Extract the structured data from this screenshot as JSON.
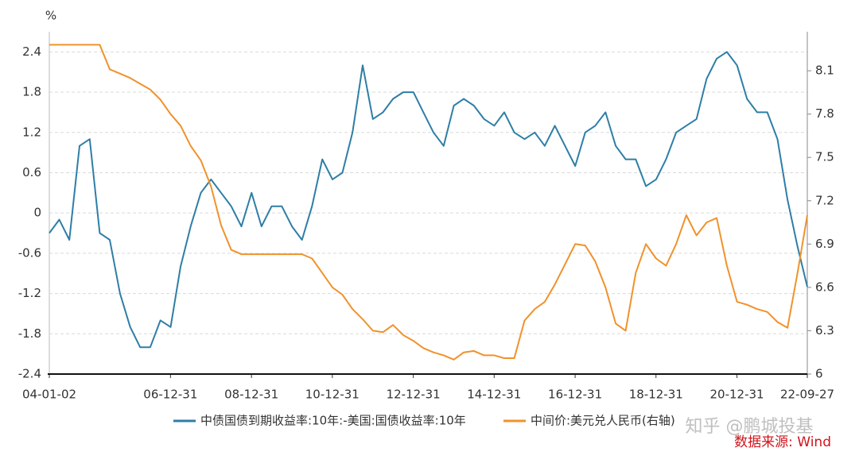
{
  "chart_data": {
    "type": "line",
    "y_unit_label": "%",
    "x": [
      "2004-01-02",
      "2004-04-01",
      "2004-07-01",
      "2004-10-01",
      "2005-01-01",
      "2005-04-01",
      "2005-07-01",
      "2005-10-01",
      "2006-01-01",
      "2006-04-01",
      "2006-07-01",
      "2006-10-01",
      "2007-01-01",
      "2007-04-01",
      "2007-07-01",
      "2007-10-01",
      "2008-01-01",
      "2008-04-01",
      "2008-07-01",
      "2008-10-01",
      "2009-01-01",
      "2009-04-01",
      "2009-07-01",
      "2009-10-01",
      "2010-01-01",
      "2010-04-01",
      "2010-07-01",
      "2010-10-01",
      "2011-01-01",
      "2011-04-01",
      "2011-07-01",
      "2011-10-01",
      "2012-01-01",
      "2012-04-01",
      "2012-07-01",
      "2012-10-01",
      "2013-01-01",
      "2013-04-01",
      "2013-07-01",
      "2013-10-01",
      "2014-01-01",
      "2014-04-01",
      "2014-07-01",
      "2014-10-01",
      "2015-01-01",
      "2015-04-01",
      "2015-07-01",
      "2015-10-01",
      "2016-01-01",
      "2016-04-01",
      "2016-07-01",
      "2016-10-01",
      "2017-01-01",
      "2017-04-01",
      "2017-07-01",
      "2017-10-01",
      "2018-01-01",
      "2018-04-01",
      "2018-07-01",
      "2018-10-01",
      "2019-01-01",
      "2019-04-01",
      "2019-07-01",
      "2019-10-01",
      "2020-01-01",
      "2020-04-01",
      "2020-07-01",
      "2020-10-01",
      "2021-01-01",
      "2021-04-01",
      "2021-07-01",
      "2021-10-01",
      "2022-01-01",
      "2022-04-01",
      "2022-07-01",
      "2022-09-27"
    ],
    "series": [
      {
        "name": "中债国债到期收益率:10年:-美国:国债收益率:10年",
        "color": "#2e7ea6",
        "values": [
          -0.3,
          -0.1,
          -0.4,
          1.0,
          1.1,
          -0.3,
          -0.4,
          -1.2,
          -1.7,
          -2.0,
          -2.0,
          -1.6,
          -1.7,
          -0.8,
          -0.2,
          0.3,
          0.5,
          0.3,
          0.1,
          -0.2,
          0.3,
          -0.2,
          0.1,
          0.1,
          -0.2,
          -0.4,
          0.1,
          0.8,
          0.5,
          0.6,
          1.2,
          2.2,
          1.4,
          1.5,
          1.7,
          1.8,
          1.8,
          1.5,
          1.2,
          1.0,
          1.6,
          1.7,
          1.6,
          1.4,
          1.3,
          1.5,
          1.2,
          1.1,
          1.2,
          1.0,
          1.3,
          1.0,
          0.7,
          1.2,
          1.3,
          1.5,
          1.0,
          0.8,
          0.8,
          0.4,
          0.5,
          0.8,
          1.2,
          1.3,
          1.4,
          2.0,
          2.3,
          2.4,
          2.2,
          1.7,
          1.5,
          1.5,
          1.1,
          0.2,
          -0.5,
          -1.1
        ]
      },
      {
        "name": "中间价:美元兑人民币(右轴)",
        "color": "#f0922b",
        "axis": "y2",
        "values": [
          8.28,
          8.28,
          8.28,
          8.28,
          8.28,
          8.28,
          8.11,
          8.08,
          8.05,
          8.01,
          7.97,
          7.9,
          7.8,
          7.72,
          7.58,
          7.48,
          7.3,
          7.03,
          6.86,
          6.83,
          6.83,
          6.83,
          6.83,
          6.83,
          6.83,
          6.83,
          6.8,
          6.7,
          6.6,
          6.55,
          6.45,
          6.38,
          6.3,
          6.29,
          6.34,
          6.27,
          6.23,
          6.18,
          6.15,
          6.13,
          6.1,
          6.15,
          6.16,
          6.13,
          6.13,
          6.11,
          6.11,
          6.37,
          6.45,
          6.5,
          6.62,
          6.76,
          6.9,
          6.89,
          6.78,
          6.6,
          6.35,
          6.3,
          6.7,
          6.9,
          6.8,
          6.75,
          6.9,
          7.1,
          6.96,
          7.05,
          7.08,
          6.75,
          6.5,
          6.48,
          6.45,
          6.43,
          6.36,
          6.32,
          6.7,
          7.1
        ]
      }
    ],
    "xlim": [
      "2004-01-02",
      "2022-09-27"
    ],
    "xticks": [
      {
        "value": "2004-01-02",
        "label": "04-01-02"
      },
      {
        "value": "2006-12-31",
        "label": "06-12-31"
      },
      {
        "value": "2008-12-31",
        "label": "08-12-31"
      },
      {
        "value": "2010-12-31",
        "label": "10-12-31"
      },
      {
        "value": "2012-12-31",
        "label": "12-12-31"
      },
      {
        "value": "2014-12-31",
        "label": "14-12-31"
      },
      {
        "value": "2016-12-31",
        "label": "16-12-31"
      },
      {
        "value": "2018-12-31",
        "label": "18-12-31"
      },
      {
        "value": "2020-12-31",
        "label": "20-12-31"
      },
      {
        "value": "2022-09-27",
        "label": "22-09-27"
      }
    ],
    "ylim": [
      -2.4,
      2.7
    ],
    "yticks": [
      2.4,
      1.8,
      1.2,
      0.6,
      0,
      -0.6,
      -1.2,
      -1.8,
      -2.4
    ],
    "y2lim": [
      6,
      8.37
    ],
    "y2ticks": [
      8.1,
      7.8,
      7.5,
      7.2,
      6.9,
      6.6,
      6.3,
      6
    ],
    "grid": true,
    "legend": "bottom",
    "watermark": "知乎 @鹏城投基",
    "source": "数据来源: Wind"
  }
}
